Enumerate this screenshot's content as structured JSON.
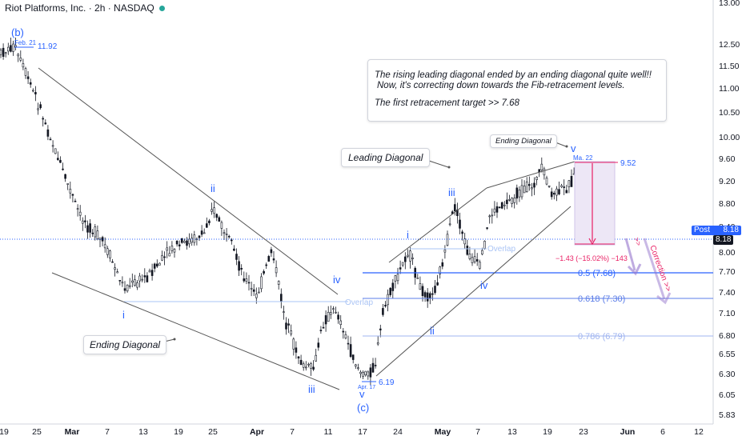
{
  "header": {
    "title": "Riot Platforms, Inc. · 2h · NASDAQ"
  },
  "annotations": {
    "main_box": {
      "line1": "The rising leading diagonal ended by an ending diagonal quite well!!",
      "line2": "Now, it's correcting down towards the Fib-retracement levels.",
      "line3": "The first retracement target >> 7.68"
    },
    "ending_diagonal_left": "Ending Diagonal",
    "leading_diagonal": "Leading Diagonal",
    "ending_diagonal_top": "Ending Diagonal",
    "overlap_1": "Overlap",
    "overlap_2": "Overlap",
    "correction": "Correction >>",
    "range_change": "−1.43 (−15.02%) −143",
    "wave_b": "(b)",
    "wave_c": "(c)",
    "high_label": "Feb. 21",
    "high_value": "11.92",
    "low_label": "Apr. 17",
    "low_value": "6.19",
    "ma22_label": "Ma. 22",
    "ma22_value": "9.52",
    "arrow_marks": ">>"
  },
  "wave_labels": {
    "left_i": "i",
    "left_ii": "ii",
    "left_iii": "iii",
    "left_iv": "iv",
    "left_v": "v",
    "right_i": "i",
    "right_ii": "ii",
    "right_iii": "iii",
    "right_iv": "iv",
    "right_v": "v"
  },
  "price_tags": {
    "post_label": "Post",
    "post_value": "8.18",
    "last_value": "8.18"
  },
  "chart_data": {
    "type": "candlestick",
    "symbol": "Riot Platforms, Inc.",
    "interval": "2h",
    "exchange": "NASDAQ",
    "x_tick_labels": [
      "19",
      "25",
      "Mar",
      "7",
      "13",
      "19",
      "25",
      "Apr",
      "7",
      "11",
      "17",
      "24",
      "May",
      "7",
      "13",
      "19",
      "23",
      "Jun",
      "6",
      "12"
    ],
    "y_tick_labels": [
      "13.00",
      "12.50",
      "11.50",
      "11.00",
      "10.50",
      "10.00",
      "9.60",
      "9.20",
      "8.80",
      "8.40",
      "8.00",
      "7.70",
      "7.40",
      "7.10",
      "6.80",
      "6.55",
      "6.30",
      "6.05",
      "5.83"
    ],
    "ylim": [
      5.8,
      13.0
    ],
    "key_points": [
      {
        "label": "Feb. 21 high",
        "value": 11.92
      },
      {
        "label": "Apr. 17 low",
        "value": 6.19
      },
      {
        "label": "Ma. 22 high",
        "value": 9.52
      },
      {
        "label": "Last price",
        "value": 8.18
      }
    ],
    "fib_levels": [
      {
        "ratio": "0.5",
        "value": 7.68,
        "label": "0.5 (7.68)",
        "color": "#2962ff"
      },
      {
        "ratio": "0.618",
        "value": 7.3,
        "label": "0.618 (7.30)",
        "color": "#5b7de8"
      },
      {
        "ratio": "0.786",
        "value": 6.79,
        "label": "0.786 (6.79)",
        "color": "#9fb4f0"
      }
    ],
    "measured_move": {
      "from": 9.52,
      "to": 8.09,
      "change": -1.43,
      "percent": -15.02
    },
    "colors": {
      "wave": "#2962ff",
      "candle": "#131722",
      "measure": "#e91e63",
      "box_fill": "#ede7f6",
      "arrow": "#7e57c2"
    }
  }
}
